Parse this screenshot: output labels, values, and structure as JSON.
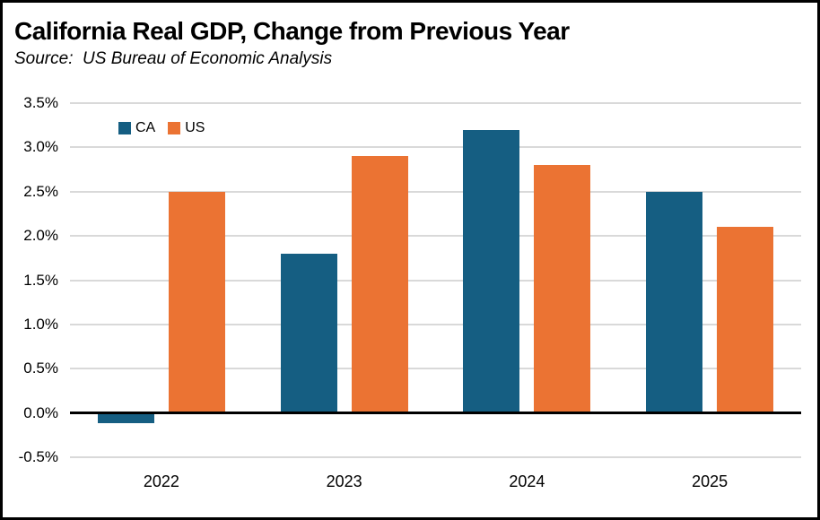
{
  "header": {
    "title": "California Real GDP, Change from Previous Year",
    "source": "Source:  US Bureau of Economic Analysis"
  },
  "legend": {
    "items": [
      {
        "label": "CA",
        "color": "#155E82"
      },
      {
        "label": "US",
        "color": "#EB7333"
      }
    ]
  },
  "chart_data": {
    "type": "bar",
    "title": "California Real GDP, Change from Previous Year",
    "subtitle": "Source:  US Bureau of Economic Analysis",
    "categories": [
      "2022",
      "2023",
      "2024",
      "2025"
    ],
    "series": [
      {
        "name": "CA",
        "color": "#155E82",
        "values": [
          -0.1,
          1.8,
          3.2,
          2.5
        ]
      },
      {
        "name": "US",
        "color": "#EB7333",
        "values": [
          2.5,
          2.9,
          2.8,
          2.1
        ]
      }
    ],
    "ylim": [
      -0.5,
      3.5
    ],
    "ytick_step": 0.5,
    "ytick_labels": [
      "3.5%",
      "3.0%",
      "2.5%",
      "2.0%",
      "1.5%",
      "1.0%",
      "0.5%",
      "0.0%",
      "-0.5%"
    ],
    "xlabel": "",
    "ylabel": "",
    "value_format": "percent",
    "grid": true,
    "legend_position": "top-left-inside"
  },
  "colors": {
    "grid": "#D9D9D9",
    "zero_line": "#000000",
    "frame_border": "#000000",
    "background": "#FFFFFF"
  }
}
